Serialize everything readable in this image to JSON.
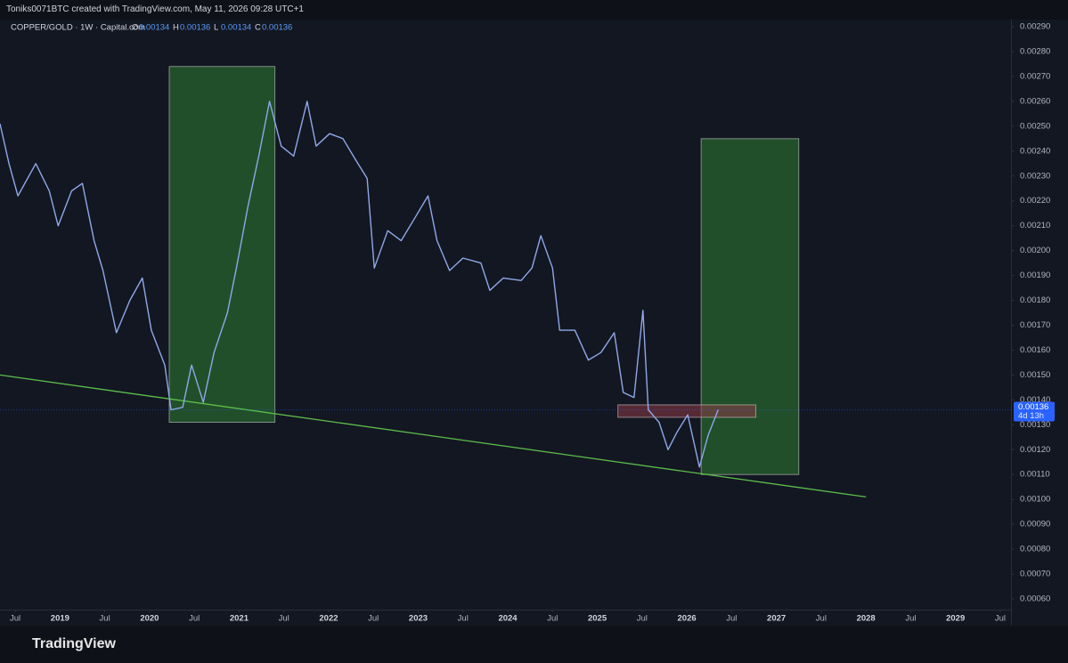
{
  "header": {
    "author_line": "Toniks0071BTC created with TradingView.com, May 11, 2026 09:28 UTC+1"
  },
  "footer": {
    "brand": "TradingView"
  },
  "chart_data": {
    "type": "line",
    "symbol_line": "COPPER/GOLD · 1W · Capital.com",
    "ohlc": [
      {
        "label": "O",
        "value": 0.00134
      },
      {
        "label": "H",
        "value": 0.00136
      },
      {
        "label": "L",
        "value": 0.00134
      },
      {
        "label": "C",
        "value": 0.00136
      }
    ],
    "x": [
      2018.33,
      2018.43,
      2018.53,
      2018.73,
      2018.88,
      2018.98,
      2019.13,
      2019.25,
      2019.38,
      2019.48,
      2019.63,
      2019.78,
      2019.92,
      2020.02,
      2020.17,
      2020.24,
      2020.37,
      2020.47,
      2020.6,
      2020.72,
      2020.87,
      2020.97,
      2021.1,
      2021.22,
      2021.34,
      2021.47,
      2021.61,
      2021.76,
      2021.86,
      2022.01,
      2022.16,
      2022.31,
      2022.43,
      2022.51,
      2022.66,
      2022.81,
      2022.96,
      2023.11,
      2023.21,
      2023.35,
      2023.5,
      2023.7,
      2023.8,
      2023.95,
      2024.15,
      2024.27,
      2024.37,
      2024.5,
      2024.58,
      2024.75,
      2024.9,
      2025.04,
      2025.19,
      2025.29,
      2025.41,
      2025.51,
      2025.57,
      2025.69,
      2025.79,
      2025.89,
      2026.01,
      2026.14,
      2026.24,
      2026.35
    ],
    "series": [
      {
        "name": "COPPER/GOLD",
        "color": "#8fa8e8",
        "values": [
          0.00251,
          0.00235,
          0.00222,
          0.00235,
          0.00224,
          0.0021,
          0.00224,
          0.00227,
          0.00204,
          0.00192,
          0.00167,
          0.0018,
          0.00189,
          0.00168,
          0.00154,
          0.00136,
          0.00137,
          0.00154,
          0.00139,
          0.00159,
          0.00175,
          0.00193,
          0.00218,
          0.00238,
          0.0026,
          0.00242,
          0.00238,
          0.0026,
          0.00242,
          0.00247,
          0.00245,
          0.00236,
          0.00229,
          0.00193,
          0.00208,
          0.00204,
          0.00213,
          0.00222,
          0.00204,
          0.00192,
          0.00197,
          0.00195,
          0.00184,
          0.00189,
          0.00188,
          0.00193,
          0.00206,
          0.00193,
          0.00168,
          0.00168,
          0.00156,
          0.00159,
          0.00167,
          0.00143,
          0.00141,
          0.00176,
          0.00136,
          0.00131,
          0.0012,
          0.00127,
          0.00134,
          0.00113,
          0.00126,
          0.00136
        ]
      }
    ],
    "last_price": 0.00136,
    "countdown": "4d 13h",
    "xlim": [
      2018.33,
      2029.62
    ],
    "ylim": [
      0.0006,
      0.0029
    ],
    "xticks": [
      {
        "value": 2018.5,
        "label": "Jul"
      },
      {
        "value": 2019,
        "label": "2019"
      },
      {
        "value": 2019.5,
        "label": "Jul"
      },
      {
        "value": 2020,
        "label": "2020"
      },
      {
        "value": 2020.5,
        "label": "Jul"
      },
      {
        "value": 2021,
        "label": "2021"
      },
      {
        "value": 2021.5,
        "label": "Jul"
      },
      {
        "value": 2022,
        "label": "2022"
      },
      {
        "value": 2022.5,
        "label": "Jul"
      },
      {
        "value": 2023,
        "label": "2023"
      },
      {
        "value": 2023.5,
        "label": "Jul"
      },
      {
        "value": 2024,
        "label": "2024"
      },
      {
        "value": 2024.5,
        "label": "Jul"
      },
      {
        "value": 2025,
        "label": "2025"
      },
      {
        "value": 2025.5,
        "label": "Jul"
      },
      {
        "value": 2026,
        "label": "2026"
      },
      {
        "value": 2026.5,
        "label": "Jul"
      },
      {
        "value": 2027,
        "label": "2027"
      },
      {
        "value": 2027.5,
        "label": "Jul"
      },
      {
        "value": 2028,
        "label": "2028"
      },
      {
        "value": 2028.5,
        "label": "Jul"
      },
      {
        "value": 2029,
        "label": "2029"
      },
      {
        "value": 2029.5,
        "label": "Jul"
      }
    ],
    "yticks": [
      {
        "value": 0.0029,
        "label": "0.00290"
      },
      {
        "value": 0.0028,
        "label": "0.00280"
      },
      {
        "value": 0.0027,
        "label": "0.00270"
      },
      {
        "value": 0.0026,
        "label": "0.00260"
      },
      {
        "value": 0.0025,
        "label": "0.00250"
      },
      {
        "value": 0.0024,
        "label": "0.00240"
      },
      {
        "value": 0.0023,
        "label": "0.00230"
      },
      {
        "value": 0.0022,
        "label": "0.00220"
      },
      {
        "value": 0.0021,
        "label": "0.00210"
      },
      {
        "value": 0.002,
        "label": "0.00200"
      },
      {
        "value": 0.0019,
        "label": "0.00190"
      },
      {
        "value": 0.0018,
        "label": "0.00180"
      },
      {
        "value": 0.0017,
        "label": "0.00170"
      },
      {
        "value": 0.0016,
        "label": "0.00160"
      },
      {
        "value": 0.0015,
        "label": "0.00150"
      },
      {
        "value": 0.0014,
        "label": "0.00140"
      },
      {
        "value": 0.0013,
        "label": "0.00130"
      },
      {
        "value": 0.0012,
        "label": "0.00120"
      },
      {
        "value": 0.0011,
        "label": "0.00110"
      },
      {
        "value": 0.001,
        "label": "0.00100"
      },
      {
        "value": 0.0009,
        "label": "0.00090"
      },
      {
        "value": 0.0008,
        "label": "0.00080"
      },
      {
        "value": 0.0007,
        "label": "0.00070"
      },
      {
        "value": 0.0006,
        "label": "0.00060"
      }
    ],
    "grid": false,
    "boxes": [
      {
        "x": [
          2020.22,
          2021.4
        ],
        "y": [
          0.00131,
          0.00274
        ],
        "color": "#2e7d32"
      },
      {
        "x": [
          2026.16,
          2027.25
        ],
        "y": [
          0.0011,
          0.00245
        ],
        "color": "#2e7d32"
      },
      {
        "x": [
          2025.23,
          2026.77
        ],
        "y": [
          0.00133,
          0.00138
        ],
        "color": "#8e3a45"
      }
    ],
    "trendline": {
      "x": [
        2018.33,
        2028.0
      ],
      "y": [
        0.0015,
        0.00101
      ],
      "color": "#5cbf4a"
    }
  }
}
